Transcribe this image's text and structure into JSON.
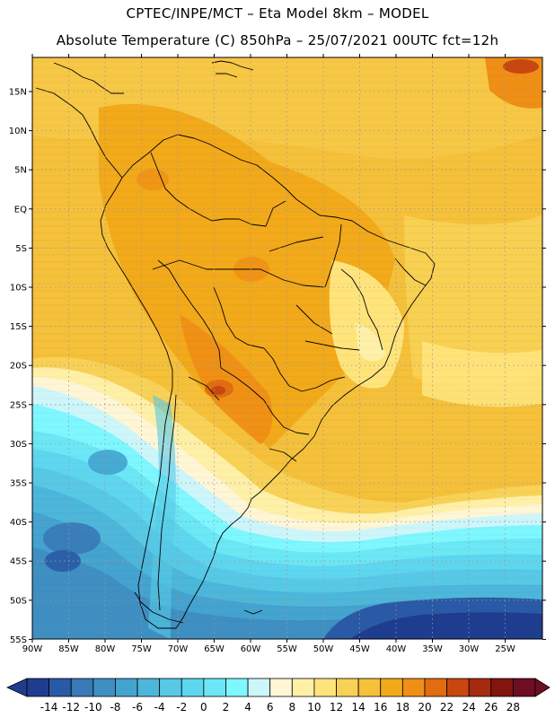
{
  "header": {
    "line1": "CPTEC/INPE/MCT  –  Eta Model 8km  – MODEL",
    "line2": "Absolute Temperature (C) 850hPa – 25/07/2021 00UTC fct=12h"
  },
  "map": {
    "lat_labels": [
      "15N",
      "10N",
      "5N",
      "EQ",
      "5S",
      "10S",
      "15S",
      "20S",
      "25S",
      "30S",
      "35S",
      "40S",
      "45S",
      "50S",
      "55S"
    ],
    "lon_labels": [
      "90W",
      "85W",
      "80W",
      "75W",
      "70W",
      "65W",
      "60W",
      "55W",
      "50W",
      "45W",
      "40W",
      "35W",
      "30W",
      "25W"
    ],
    "regions": {
      "warm_north": "warm tropical band 16–20 C",
      "hot_spot": "Paraguay/Chaco maximum 22–24 C",
      "cold_south": "cold Patagonian/South Atlantic air -14 to 0 C"
    }
  },
  "colorbar": {
    "labels": [
      "-14",
      "-12",
      "-10",
      "-8",
      "-6",
      "-4",
      "-2",
      "0",
      "2",
      "4",
      "6",
      "8",
      "10",
      "12",
      "14",
      "16",
      "18",
      "20",
      "22",
      "24",
      "26",
      "28"
    ],
    "colors": [
      "#1f3d8f",
      "#2a5aa6",
      "#3a7ab6",
      "#3f8fc2",
      "#44a3cf",
      "#4cb7da",
      "#57c9e6",
      "#5fd6ef",
      "#6be7f5",
      "#7ff7ff",
      "#cdf6fb",
      "#fff6d6",
      "#fff0a8",
      "#ffe47c",
      "#f8d257",
      "#f5c03a",
      "#f2a91a",
      "#ef8f15",
      "#e06d10",
      "#c84710",
      "#a52a10",
      "#811610",
      "#6e0e22"
    ]
  }
}
